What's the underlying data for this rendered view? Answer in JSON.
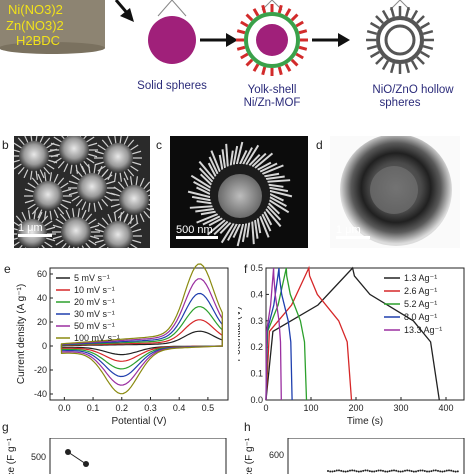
{
  "colors": {
    "precursor_text": "#f2e21a",
    "sphere": "#a0207a",
    "shell_green": "#3aa14a",
    "spike_red": "#d22b2b",
    "caption_text": "#2b2b7a"
  },
  "schematic": {
    "precursor_lines": [
      "Ni(NO3)2",
      "Zn(NO3)2",
      "H2BDC"
    ],
    "captions": {
      "solid": "Solid spheres",
      "yolk_shell_line1": "Yolk-shell",
      "yolk_shell_line2": "Ni/Zn-MOF",
      "hollow_line1": "NiO/ZnO hollow",
      "hollow_line2": "spheres"
    }
  },
  "micrographs": {
    "b": {
      "label": "b",
      "scale": "1 μm"
    },
    "c": {
      "label": "c",
      "scale": "500 nm"
    },
    "d": {
      "label": "d",
      "scale": "1 μm"
    }
  },
  "panel_labels": {
    "e": "e",
    "f": "f",
    "g": "g",
    "h": "h"
  },
  "chart_data": [
    {
      "panel": "e",
      "type": "line",
      "xlabel": "Potential (V)",
      "ylabel": "Current density (A g⁻¹)",
      "xlim": [
        -0.05,
        0.57
      ],
      "ylim": [
        -45,
        65
      ],
      "xticks": [
        "0.0",
        "0.1",
        "0.2",
        "0.3",
        "0.4",
        "0.5"
      ],
      "yticks": [
        "-40",
        "-20",
        "0",
        "20",
        "40",
        "60"
      ],
      "legend_position": "top-left",
      "series": [
        {
          "name": "5 mV s⁻¹",
          "color": "#222222",
          "scale": 0.18
        },
        {
          "name": "10 mV s⁻¹",
          "color": "#d62728",
          "scale": 0.32
        },
        {
          "name": "20 mV s⁻¹",
          "color": "#2ca02c",
          "scale": 0.48
        },
        {
          "name": "30 mV s⁻¹",
          "color": "#1f3fae",
          "scale": 0.64
        },
        {
          "name": "50 mV s⁻¹",
          "color": "#9a2fa0",
          "scale": 0.82
        },
        {
          "name": "100 mV s⁻¹",
          "color": "#8a8a10",
          "scale": 1.0
        }
      ]
    },
    {
      "panel": "f",
      "type": "line",
      "xlabel": "Time (s)",
      "ylabel": "Potential (V)",
      "xlim": [
        0,
        440
      ],
      "ylim": [
        0,
        0.5
      ],
      "xticks": [
        "0",
        "100",
        "200",
        "300",
        "400"
      ],
      "yticks": [
        "0.0",
        "0.1",
        "0.2",
        "0.3",
        "0.4",
        "0.5"
      ],
      "legend_position": "top-right",
      "series": [
        {
          "name": "1.3 Ag⁻¹",
          "color": "#222222",
          "t_end": 385
        },
        {
          "name": "2.6 Ag⁻¹",
          "color": "#d62728",
          "t_end": 190
        },
        {
          "name": "5.2 Ag⁻¹",
          "color": "#2ca02c",
          "t_end": 90
        },
        {
          "name": "8.0 Ag⁻¹",
          "color": "#1f3fae",
          "t_end": 58
        },
        {
          "name": "13.3 Ag⁻¹",
          "color": "#9a2fa0",
          "t_end": 34
        }
      ]
    },
    {
      "panel": "g",
      "type": "line",
      "ylabel": "ce (F g⁻¹)",
      "yticks": [
        "500"
      ],
      "points": [
        490,
        440
      ]
    },
    {
      "panel": "h",
      "type": "line",
      "ylabel": "ce (F g⁻¹)",
      "yticks": [
        "600"
      ]
    }
  ]
}
